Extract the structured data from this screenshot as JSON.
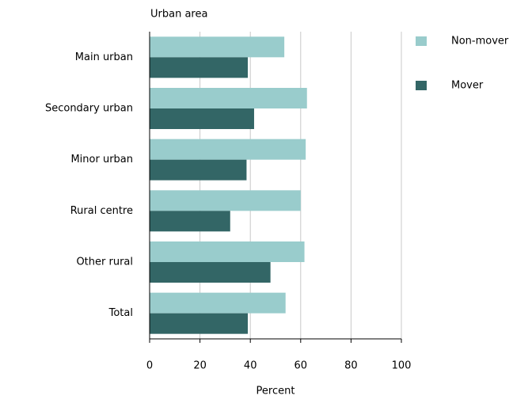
{
  "chart_data": {
    "type": "bar",
    "orientation": "horizontal",
    "title": "Urban area",
    "x_label": "Percent",
    "categories": [
      "Main urban",
      "Secondary urban",
      "Minor urban",
      "Rural centre",
      "Other rural",
      "Total"
    ],
    "series": [
      {
        "name": "Non-mover",
        "color": "#99cccc",
        "values": [
          53.5,
          62.5,
          62,
          60,
          61.5,
          54
        ]
      },
      {
        "name": "Mover",
        "color": "#336666",
        "values": [
          39,
          41.5,
          38.5,
          32,
          48,
          39
        ]
      }
    ],
    "xlim": [
      0,
      100
    ],
    "xticks": [
      0,
      20,
      40,
      60,
      80,
      100
    ],
    "grid": true,
    "legend": "right"
  }
}
